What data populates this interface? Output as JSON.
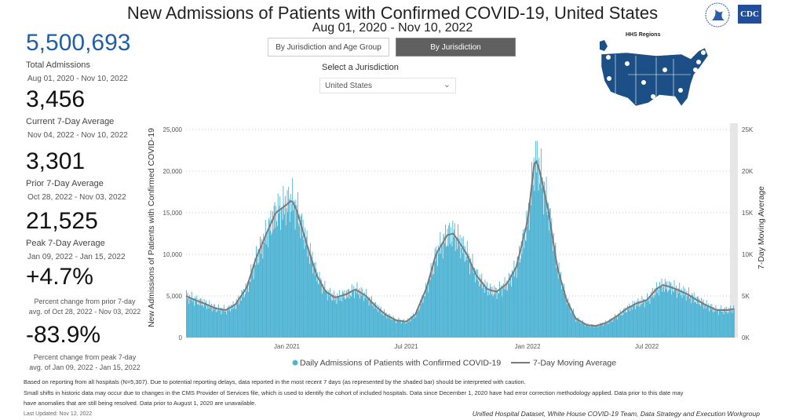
{
  "header": {
    "title": "New Admissions of Patients with Confirmed COVID-19, United States",
    "subtitle": "Aug 01, 2020 - Nov 10, 2022",
    "logo_text": "CDC"
  },
  "kpis": [
    {
      "value": "5,500,693",
      "label": "Total Admissions",
      "range": "Aug 01, 2020 - Nov 10, 2022",
      "color": "#1f5fa6"
    },
    {
      "value": "3,456",
      "label": "Current 7-Day Average",
      "range": "Nov 04, 2022 - Nov 10, 2022"
    },
    {
      "value": "3,301",
      "label": "Prior 7-Day Average",
      "range": "Oct 28, 2022 - Nov 03, 2022"
    },
    {
      "value": "21,525",
      "label": "Peak 7-Day Average",
      "range": "Jan 09, 2022 - Jan 15, 2022"
    },
    {
      "value": "+4.7%",
      "label": "Percent change from prior 7-day",
      "range": "avg. of Oct 28, 2022 - Nov 03, 2022"
    },
    {
      "value": "-83.9%",
      "label": "Percent change from peak 7-day",
      "range": "avg. of Jan 09, 2022 - Jan 15, 2022"
    }
  ],
  "controls": {
    "tab1": "By Jurisdiction and Age Group",
    "tab2": "By Jurisdiction",
    "select_label": "Select a Jurisdiction",
    "select_value": "United States"
  },
  "map": {
    "title": "HHS Regions"
  },
  "footer": {
    "note1": "Based on reporting from all hospitals (N=5,307). Due to potential reporting delays, data reported in the most recent 7 days (as represented by the shaded bar) should be interpreted with caution.",
    "note2": "Small shifts in historic data may occur due to changes in the CMS Provider of Services file, which is used to identify the cohort of included hospitals. Data since December 1, 2020 have had error correction methodology applied. Data prior to this date may",
    "note3": "have anomalies that are still being resolved. Data prior to August 1, 2020 are unavailable.",
    "updated": "Last Updated: Nov 12, 2022",
    "source": "Unified Hospital Dataset, White House COVID-19 Team, Data Strategy and Execution Workgroup"
  },
  "chart_data": {
    "type": "bar+line",
    "ylabel": "New Admissions of Patients with Confirmed COVID-19",
    "y2label": "7-Day Moving Average",
    "ylim": [
      0,
      25000
    ],
    "yticks": [
      "0",
      "5,000",
      "10,000",
      "15,000",
      "20,000",
      "25,000"
    ],
    "y2ticks": [
      "0K",
      "5K",
      "10K",
      "15K",
      "20K",
      "25K"
    ],
    "xrange": [
      "2020-08-01",
      "2022-11-10"
    ],
    "xticks": [
      {
        "date": "2021-01-01",
        "label": "Jan 2021"
      },
      {
        "date": "2021-07-01",
        "label": "Jul 2021"
      },
      {
        "date": "2022-01-01",
        "label": "Jan 2022"
      },
      {
        "date": "2022-07-01",
        "label": "Jul 2022"
      }
    ],
    "legend": [
      "Daily Admissions of Patients with Confirmed COVID-19",
      "7-Day Moving Average"
    ],
    "colors": {
      "bars": "#4eb3d3",
      "line": "#7a7a7a",
      "shade": "#e6e6e6"
    },
    "shaded_period": [
      "2022-11-04",
      "2022-11-10"
    ],
    "moving_average": [
      [
        "2020-08-01",
        5000
      ],
      [
        "2020-08-15",
        4500
      ],
      [
        "2020-09-01",
        4000
      ],
      [
        "2020-09-15",
        3500
      ],
      [
        "2020-10-01",
        3300
      ],
      [
        "2020-10-15",
        4000
      ],
      [
        "2020-11-01",
        6000
      ],
      [
        "2020-11-15",
        9500
      ],
      [
        "2020-12-01",
        12500
      ],
      [
        "2020-12-15",
        15000
      ],
      [
        "2021-01-01",
        16000
      ],
      [
        "2021-01-08",
        16500
      ],
      [
        "2021-01-15",
        15500
      ],
      [
        "2021-02-01",
        11000
      ],
      [
        "2021-02-15",
        7500
      ],
      [
        "2021-03-01",
        5500
      ],
      [
        "2021-03-15",
        4800
      ],
      [
        "2021-04-01",
        5200
      ],
      [
        "2021-04-15",
        5800
      ],
      [
        "2021-05-01",
        5000
      ],
      [
        "2021-05-15",
        3800
      ],
      [
        "2021-06-01",
        2700
      ],
      [
        "2021-06-15",
        2100
      ],
      [
        "2021-07-01",
        1900
      ],
      [
        "2021-07-15",
        2800
      ],
      [
        "2021-08-01",
        6000
      ],
      [
        "2021-08-15",
        10000
      ],
      [
        "2021-09-01",
        12300
      ],
      [
        "2021-09-10",
        12500
      ],
      [
        "2021-09-15",
        12000
      ],
      [
        "2021-10-01",
        10000
      ],
      [
        "2021-10-15",
        7500
      ],
      [
        "2021-11-01",
        5800
      ],
      [
        "2021-11-15",
        5500
      ],
      [
        "2021-12-01",
        6500
      ],
      [
        "2021-12-15",
        8500
      ],
      [
        "2022-01-01",
        14000
      ],
      [
        "2022-01-12",
        21525
      ],
      [
        "2022-01-18",
        20500
      ],
      [
        "2022-02-01",
        15500
      ],
      [
        "2022-02-15",
        8500
      ],
      [
        "2022-03-01",
        4500
      ],
      [
        "2022-03-15",
        2300
      ],
      [
        "2022-04-01",
        1500
      ],
      [
        "2022-04-15",
        1400
      ],
      [
        "2022-05-01",
        1800
      ],
      [
        "2022-05-15",
        2500
      ],
      [
        "2022-06-01",
        3500
      ],
      [
        "2022-06-15",
        4100
      ],
      [
        "2022-07-01",
        4500
      ],
      [
        "2022-07-15",
        5800
      ],
      [
        "2022-07-25",
        6300
      ],
      [
        "2022-08-01",
        6200
      ],
      [
        "2022-08-15",
        5800
      ],
      [
        "2022-09-01",
        5200
      ],
      [
        "2022-09-15",
        4500
      ],
      [
        "2022-10-01",
        3800
      ],
      [
        "2022-10-15",
        3300
      ],
      [
        "2022-11-01",
        3301
      ],
      [
        "2022-11-10",
        3456
      ]
    ]
  }
}
